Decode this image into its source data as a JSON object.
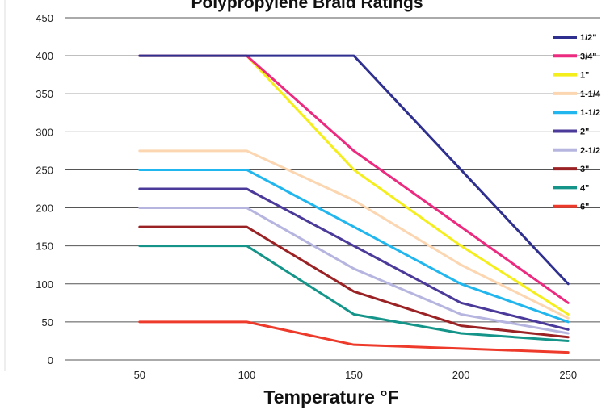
{
  "chart_data": {
    "type": "line",
    "title": "Polypropylene Braid Ratings",
    "xlabel": "Temperature °F",
    "ylabel": "",
    "x": [
      50,
      100,
      150,
      200,
      250
    ],
    "xlim": [
      15,
      265
    ],
    "ylim": [
      0,
      450
    ],
    "yticks": [
      0,
      50,
      100,
      150,
      200,
      250,
      300,
      350,
      400,
      450
    ],
    "grid": "horizontal",
    "legend_position": "right",
    "series": [
      {
        "name": "1/2\"",
        "color": "#2e2f8f",
        "values": [
          400,
          400,
          400,
          250,
          100
        ]
      },
      {
        "name": "3/4\"",
        "color": "#ec2a7f",
        "values": [
          400,
          400,
          275,
          175,
          75
        ]
      },
      {
        "name": "1\"",
        "color": "#f5ee1d",
        "values": [
          400,
          400,
          250,
          150,
          60
        ]
      },
      {
        "name": "1-1/4",
        "color": "#fbd6b0",
        "values": [
          275,
          275,
          210,
          125,
          55
        ]
      },
      {
        "name": "1-1/2",
        "color": "#21b7ee",
        "values": [
          250,
          250,
          175,
          100,
          50
        ]
      },
      {
        "name": "2\"",
        "color": "#4b3a99",
        "values": [
          225,
          225,
          150,
          75,
          40
        ]
      },
      {
        "name": "2-1/2",
        "color": "#b6b5e0",
        "values": [
          200,
          200,
          120,
          60,
          35
        ]
      },
      {
        "name": "3\"",
        "color": "#9b2224",
        "values": [
          175,
          175,
          90,
          45,
          30
        ]
      },
      {
        "name": "4\"",
        "color": "#15958a",
        "values": [
          150,
          150,
          60,
          35,
          25
        ]
      },
      {
        "name": "6\"",
        "color": "#ee3a2a",
        "values": [
          50,
          50,
          20,
          15,
          10
        ]
      }
    ]
  }
}
